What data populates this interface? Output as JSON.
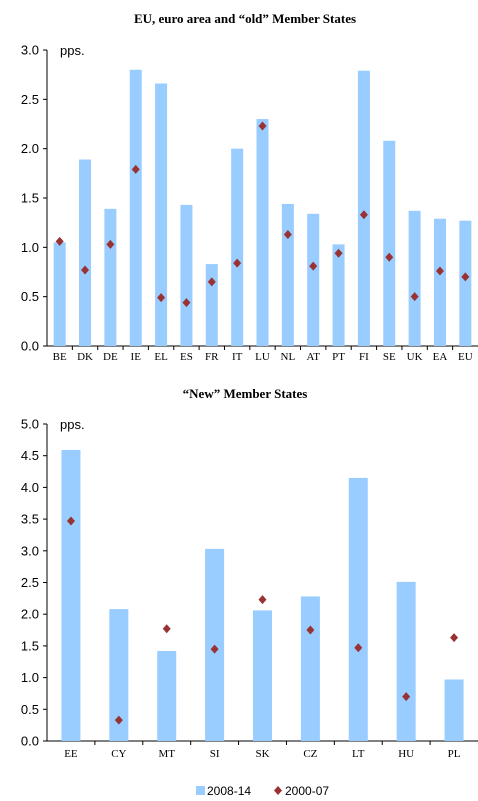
{
  "colors": {
    "bar": "#99ccff",
    "marker": "#993333",
    "axis": "#000000"
  },
  "legend": {
    "bar_label": "2008-14",
    "marker_label": "2000-07"
  },
  "chart_data": [
    {
      "type": "bar",
      "title": "EU, euro area and “old” Member States",
      "unit_label": "pps.",
      "ylim": [
        0,
        3
      ],
      "yticks": [
        "0.0",
        "0.5",
        "1.0",
        "1.5",
        "2.0",
        "2.5",
        "3.0"
      ],
      "ytick_values": [
        0,
        0.5,
        1,
        1.5,
        2,
        2.5,
        3
      ],
      "categories": [
        "BE",
        "DK",
        "DE",
        "IE",
        "EL",
        "ES",
        "FR",
        "IT",
        "LU",
        "NL",
        "AT",
        "PT",
        "FI",
        "SE",
        "UK",
        "EA",
        "EU"
      ],
      "series": [
        {
          "name": "2008-14",
          "kind": "bar",
          "values": [
            1.05,
            1.89,
            1.39,
            2.8,
            2.66,
            1.43,
            0.83,
            2.0,
            2.3,
            1.44,
            1.34,
            1.03,
            2.79,
            2.08,
            1.37,
            1.29,
            1.27
          ]
        },
        {
          "name": "2000-07",
          "kind": "marker",
          "values": [
            1.06,
            0.77,
            1.03,
            1.79,
            0.49,
            0.44,
            0.65,
            0.84,
            2.23,
            1.13,
            0.81,
            0.94,
            1.33,
            0.9,
            0.5,
            0.76,
            0.7
          ]
        }
      ]
    },
    {
      "type": "bar",
      "title": "“New” Member States",
      "unit_label": "pps.",
      "ylim": [
        0,
        5
      ],
      "yticks": [
        "0.0",
        "0.5",
        "1.0",
        "1.5",
        "2.0",
        "2.5",
        "3.0",
        "3.5",
        "4.0",
        "4.5",
        "5.0"
      ],
      "ytick_values": [
        0,
        0.5,
        1,
        1.5,
        2,
        2.5,
        3,
        3.5,
        4,
        4.5,
        5
      ],
      "categories": [
        "EE",
        "CY",
        "MT",
        "SI",
        "SK",
        "CZ",
        "LT",
        "HU",
        "PL"
      ],
      "series": [
        {
          "name": "2008-14",
          "kind": "bar",
          "values": [
            4.59,
            2.08,
            1.42,
            3.03,
            2.06,
            2.28,
            4.15,
            2.51,
            0.97
          ]
        },
        {
          "name": "2000-07",
          "kind": "marker",
          "values": [
            3.47,
            0.33,
            1.77,
            1.45,
            2.23,
            1.75,
            1.47,
            0.7,
            1.63
          ]
        }
      ]
    }
  ]
}
